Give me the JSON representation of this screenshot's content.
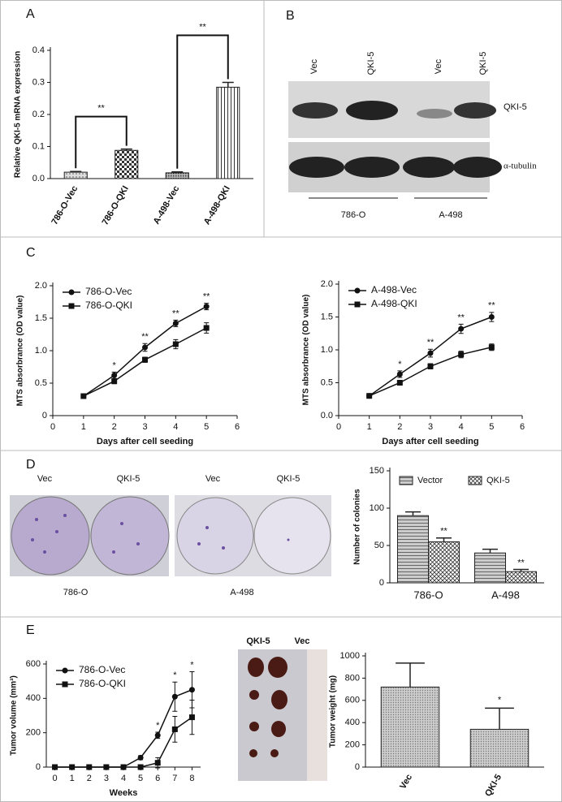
{
  "panels": {
    "a": "A",
    "b": "B",
    "c": "C",
    "d": "D",
    "e": "E"
  },
  "blot": {
    "lanes": [
      "Vec",
      "QKI-5",
      "Vec",
      "QKI-5"
    ],
    "bands": [
      "QKI-5",
      "α-tubulin"
    ],
    "groups": [
      "786-O",
      "A-498"
    ]
  },
  "colony": {
    "lanes": [
      "Vec",
      "QKI-5",
      "Vec",
      "QKI-5"
    ],
    "groups": [
      "786-O",
      "A-498"
    ]
  },
  "tumor_photo": {
    "lanes": [
      "QKI-5",
      "Vec"
    ]
  },
  "chart_data": [
    {
      "type": "bar",
      "ylabel": "Relative QKI-5 mRNA expression",
      "categories": [
        "786-O-Vec",
        "786-O-QKI",
        "A-498-Vec",
        "A-498-QKI"
      ],
      "values": [
        0.02,
        0.088,
        0.018,
        0.285
      ],
      "errors": [
        0.002,
        0.004,
        0.003,
        0.015
      ],
      "significance": [
        "**",
        "**"
      ],
      "color": "#555555",
      "ylim": [
        0,
        0.4
      ],
      "yticks": [
        {
          "value": 0,
          "label": "0.0"
        },
        0.1,
        0.2,
        0.3,
        0.4
      ]
    },
    {
      "type": "line",
      "xlabel": "Days after cell seeding",
      "ylabel": "MTS absorbrance (OD value)",
      "x": [
        1,
        2,
        3,
        4,
        5
      ],
      "series": [
        {
          "name": "786-O-Vec",
          "color": "#111111",
          "values": [
            0.3,
            0.62,
            1.05,
            1.42,
            1.68
          ],
          "errors": [
            0.02,
            0.05,
            0.06,
            0.05,
            0.05
          ]
        },
        {
          "name": "786-O-QKI",
          "color": "#111111",
          "values": [
            0.3,
            0.53,
            0.86,
            1.1,
            1.35
          ],
          "errors": [
            0.02,
            0.04,
            0.04,
            0.07,
            0.08
          ]
        }
      ],
      "significance": [
        null,
        "*",
        "**",
        "**",
        "**"
      ],
      "xlim": [
        0,
        6
      ],
      "xticks": [
        0,
        1,
        2,
        3,
        4,
        5,
        6
      ],
      "ylim": [
        0,
        2
      ],
      "yticks": [
        0,
        0.5,
        {
          "value": 1,
          "label": "1.0"
        },
        1.5,
        {
          "value": 2,
          "label": "2.0"
        }
      ]
    },
    {
      "type": "line",
      "xlabel": "Days after cell seeding",
      "ylabel": "MTS absorbrance (OD value)",
      "x": [
        1,
        2,
        3,
        4,
        5
      ],
      "series": [
        {
          "name": "A-498-Vec",
          "color": "#111111",
          "values": [
            0.3,
            0.63,
            0.95,
            1.32,
            1.5
          ],
          "errors": [
            0.02,
            0.05,
            0.06,
            0.07,
            0.07
          ]
        },
        {
          "name": "A-498-QKI",
          "color": "#111111",
          "values": [
            0.3,
            0.5,
            0.75,
            0.93,
            1.04
          ],
          "errors": [
            0.02,
            0.03,
            0.04,
            0.05,
            0.05
          ]
        }
      ],
      "significance": [
        null,
        "*",
        "**",
        "**",
        "**"
      ],
      "xlim": [
        0,
        6
      ],
      "xticks": [
        0,
        1,
        2,
        3,
        4,
        5,
        6
      ],
      "ylim": [
        0,
        2
      ],
      "yticks": [
        {
          "value": 0,
          "label": "0.0"
        },
        0.5,
        {
          "value": 1,
          "label": "1.0"
        },
        1.5,
        {
          "value": 2,
          "label": "2.0"
        }
      ]
    },
    {
      "type": "bar",
      "ylabel": "Number of colonies",
      "categories": [
        "786-O",
        "A-498"
      ],
      "series": [
        {
          "name": "Vector",
          "color": "#888888",
          "values": [
            90,
            40
          ],
          "errors": [
            5,
            5
          ]
        },
        {
          "name": "QKI-5",
          "color": "#444444",
          "values": [
            55,
            15
          ],
          "errors": [
            5,
            3
          ],
          "significance": [
            "**",
            "**"
          ]
        }
      ],
      "ylim": [
        0,
        150
      ],
      "yticks": [
        0,
        50,
        100,
        150
      ]
    },
    {
      "type": "line",
      "xlabel": "Weeks",
      "ylabel": "Tumor volume (mm³)",
      "x": [
        0,
        1,
        2,
        3,
        4,
        5,
        6,
        7,
        8
      ],
      "series": [
        {
          "name": "786-O-Vec",
          "color": "#111111",
          "values": [
            0,
            0,
            0,
            0,
            0,
            55,
            185,
            410,
            450
          ],
          "errors": [
            0,
            0,
            0,
            0,
            0,
            12,
            18,
            85,
            105
          ]
        },
        {
          "name": "786-O-QKI",
          "color": "#111111",
          "values": [
            0,
            0,
            0,
            0,
            0,
            0,
            25,
            220,
            290
          ],
          "errors": [
            0,
            0,
            0,
            0,
            0,
            0,
            30,
            75,
            100
          ]
        }
      ],
      "significance": [
        null,
        null,
        null,
        null,
        null,
        null,
        "*",
        "*",
        "*"
      ],
      "xlim": [
        -0.5,
        8.5
      ],
      "xticks": [
        0,
        1,
        2,
        3,
        4,
        5,
        6,
        7,
        8
      ],
      "ylim": [
        0,
        600
      ],
      "yticks": [
        0,
        200,
        400,
        600
      ]
    },
    {
      "type": "bar",
      "ylabel": "Tumor weight (mg)",
      "categories": [
        "Vec",
        "QKI-5"
      ],
      "values": [
        720,
        340
      ],
      "errors": [
        215,
        190
      ],
      "significance": [
        null,
        "*"
      ],
      "color": "#999999",
      "ylim": [
        0,
        1000
      ],
      "yticks": [
        0,
        200,
        400,
        600,
        800,
        1000
      ]
    }
  ]
}
